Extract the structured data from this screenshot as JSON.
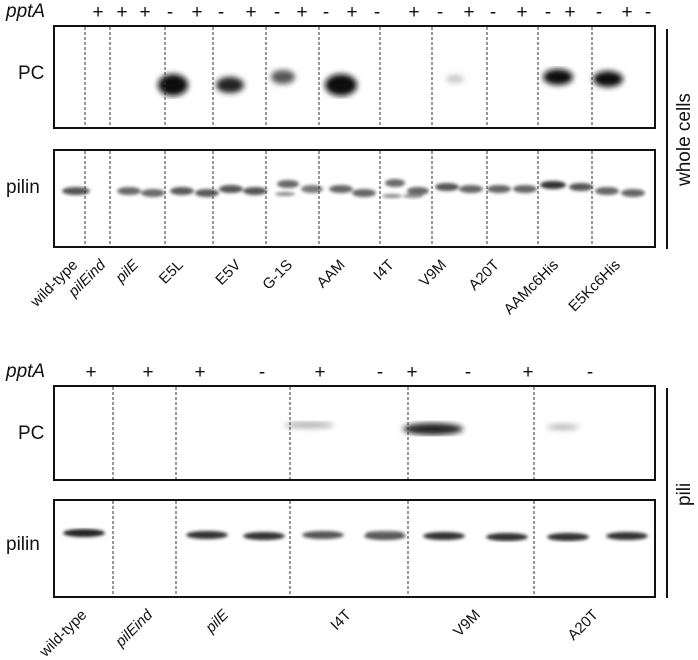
{
  "figure": {
    "top": {
      "pptA_label": "pptA",
      "signs": [
        "+",
        "+",
        "+",
        "-",
        "+",
        "-",
        "+",
        "-",
        "+",
        "-",
        "+",
        "-",
        "+",
        "-",
        "+",
        "-",
        "+",
        "-",
        "+",
        "-",
        "+",
        "-"
      ],
      "pc_label": "PC",
      "pilin_label": "pilin",
      "side_label": "whole cells",
      "lanes": [
        "wild-type",
        "pilEind",
        "pilE",
        "E5L",
        "E5V",
        "G-1S",
        "AAM",
        "I4T",
        "V9M",
        "A20T",
        "AAMc6His",
        "E5Kc6His"
      ]
    },
    "bottom": {
      "pptA_label": "pptA",
      "signs": [
        "+",
        "+",
        "+",
        "-",
        "+",
        "-",
        "+",
        "-",
        "+",
        "-"
      ],
      "pc_label": "PC",
      "pilin_label": "pilin",
      "side_label": "pili",
      "lanes": [
        "wild-type",
        "pilEind",
        "pilE",
        "I4T",
        "V9M",
        "A20T"
      ]
    }
  }
}
